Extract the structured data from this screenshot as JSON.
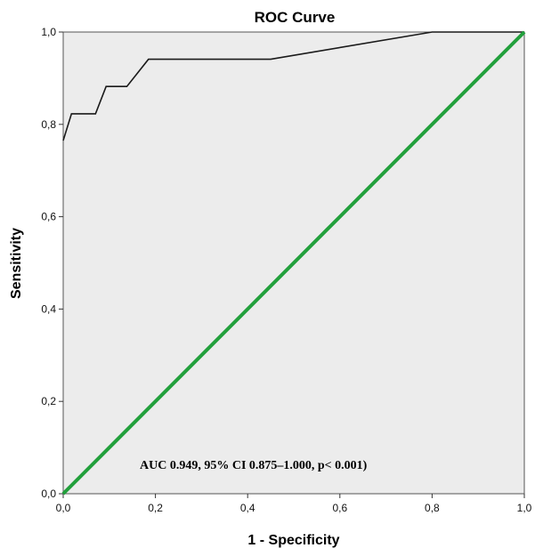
{
  "chart_data": {
    "type": "line",
    "title": "ROC Curve",
    "xlabel": "1 - Specificity",
    "ylabel": "Sensitivity",
    "xlim": [
      0,
      1
    ],
    "ylim": [
      0,
      1
    ],
    "x_ticks": [
      "0,0",
      "0,2",
      "0,4",
      "0,6",
      "0,8",
      "1,0"
    ],
    "y_ticks": [
      "0,0",
      "0,2",
      "0,4",
      "0,6",
      "0,8",
      "1,0"
    ],
    "grid": false,
    "series": [
      {
        "kind": "roc-curve",
        "color": "#1a1a1a",
        "x": [
          0.0,
          0.0,
          0.018,
          0.018,
          0.07,
          0.07,
          0.093,
          0.093,
          0.138,
          0.138,
          0.185,
          0.185,
          0.45,
          0.8,
          1.0
        ],
        "y": [
          0.765,
          0.765,
          0.823,
          0.823,
          0.823,
          0.823,
          0.882,
          0.882,
          0.882,
          0.882,
          0.941,
          0.941,
          0.941,
          1.0,
          1.0
        ]
      },
      {
        "kind": "reference-line",
        "color": "#22a03c",
        "x": [
          0,
          1
        ],
        "y": [
          0,
          1
        ]
      }
    ],
    "annotations": [
      {
        "text": "AUC 0.949, 95% CI 0.875–1.000, p< 0.001)"
      }
    ],
    "colors": {
      "plot_background": "#ececec",
      "frame": "#555555"
    }
  }
}
